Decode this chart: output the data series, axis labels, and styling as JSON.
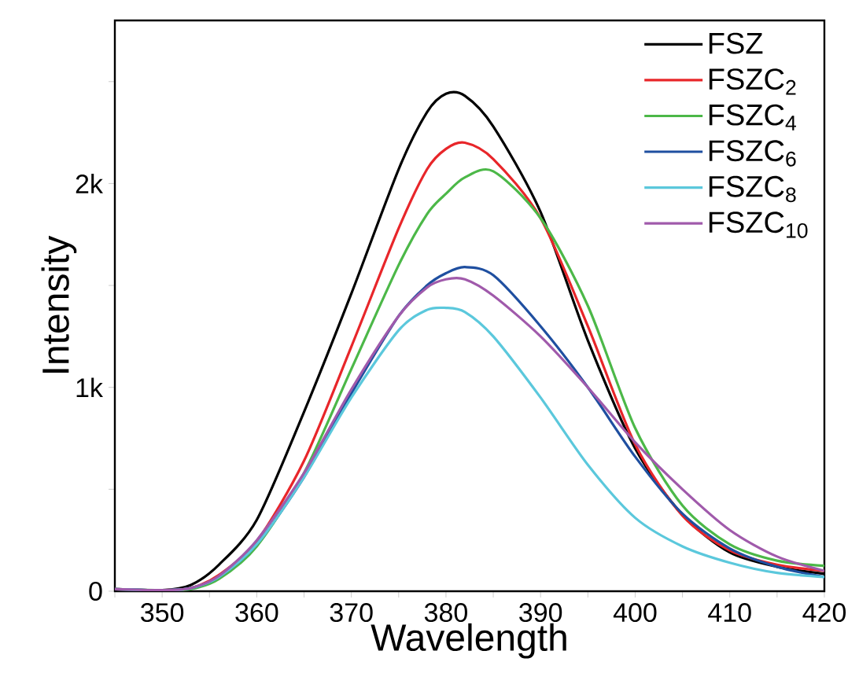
{
  "chart_data": {
    "type": "line",
    "xlabel": "Wavelength",
    "ylabel": "Intensity",
    "x": [
      345,
      350,
      353,
      356,
      360,
      365,
      370,
      375,
      378,
      380,
      382,
      385,
      390,
      395,
      400,
      405,
      410,
      415,
      420
    ],
    "xlim": [
      345,
      420
    ],
    "xticks": [
      {
        "value": 345,
        "label": null
      },
      350,
      {
        "value": 355,
        "label": null
      },
      360,
      {
        "value": 365,
        "label": null
      },
      370,
      {
        "value": 375,
        "label": null
      },
      380,
      {
        "value": 385,
        "label": null
      },
      390,
      {
        "value": 395,
        "label": null
      },
      400,
      {
        "value": 405,
        "label": null
      },
      410,
      {
        "value": 415,
        "label": null
      },
      420
    ],
    "ylim": [
      0,
      2800
    ],
    "yticks": [
      0,
      {
        "value": 500,
        "label": null
      },
      {
        "value": 1000,
        "label": "1k"
      },
      {
        "value": 1500,
        "label": null
      },
      {
        "value": 2000,
        "label": "2k"
      },
      {
        "value": 2500,
        "label": null
      }
    ],
    "grid": false,
    "legend": "top right",
    "marker": "none",
    "line_style": "solid",
    "series": [
      {
        "name": "FSZ",
        "color": "#000000",
        "values": [
          10,
          5,
          30,
          130,
          350,
          880,
          1460,
          2070,
          2350,
          2440,
          2430,
          2280,
          1860,
          1230,
          700,
          375,
          190,
          120,
          85
        ]
      },
      {
        "name": "FSZC$_{2}$",
        "color": "#e8262a",
        "values": [
          10,
          5,
          15,
          80,
          245,
          640,
          1200,
          1780,
          2070,
          2170,
          2200,
          2120,
          1830,
          1300,
          720,
          370,
          200,
          130,
          100
        ]
      },
      {
        "name": "FSZC$_{4}$",
        "color": "#4cb848",
        "values": [
          10,
          5,
          10,
          60,
          220,
          580,
          1090,
          1600,
          1850,
          1950,
          2030,
          2060,
          1830,
          1400,
          800,
          420,
          230,
          150,
          125
        ]
      },
      {
        "name": "FSZC$_{6}$",
        "color": "#1f4fa0",
        "values": [
          10,
          5,
          15,
          70,
          230,
          560,
          970,
          1350,
          1500,
          1560,
          1590,
          1550,
          1300,
          1000,
          660,
          380,
          210,
          120,
          70
        ]
      },
      {
        "name": "FSZC$_{8}$",
        "color": "#5bc8dc",
        "values": [
          10,
          5,
          15,
          70,
          230,
          560,
          950,
          1280,
          1380,
          1390,
          1370,
          1250,
          950,
          620,
          360,
          220,
          140,
          90,
          70
        ]
      },
      {
        "name": "FSZC$_{10}$",
        "color": "#a05aab",
        "values": [
          10,
          5,
          15,
          75,
          250,
          580,
          990,
          1350,
          1490,
          1530,
          1530,
          1450,
          1250,
          1000,
          730,
          500,
          300,
          170,
          100
        ]
      }
    ]
  }
}
